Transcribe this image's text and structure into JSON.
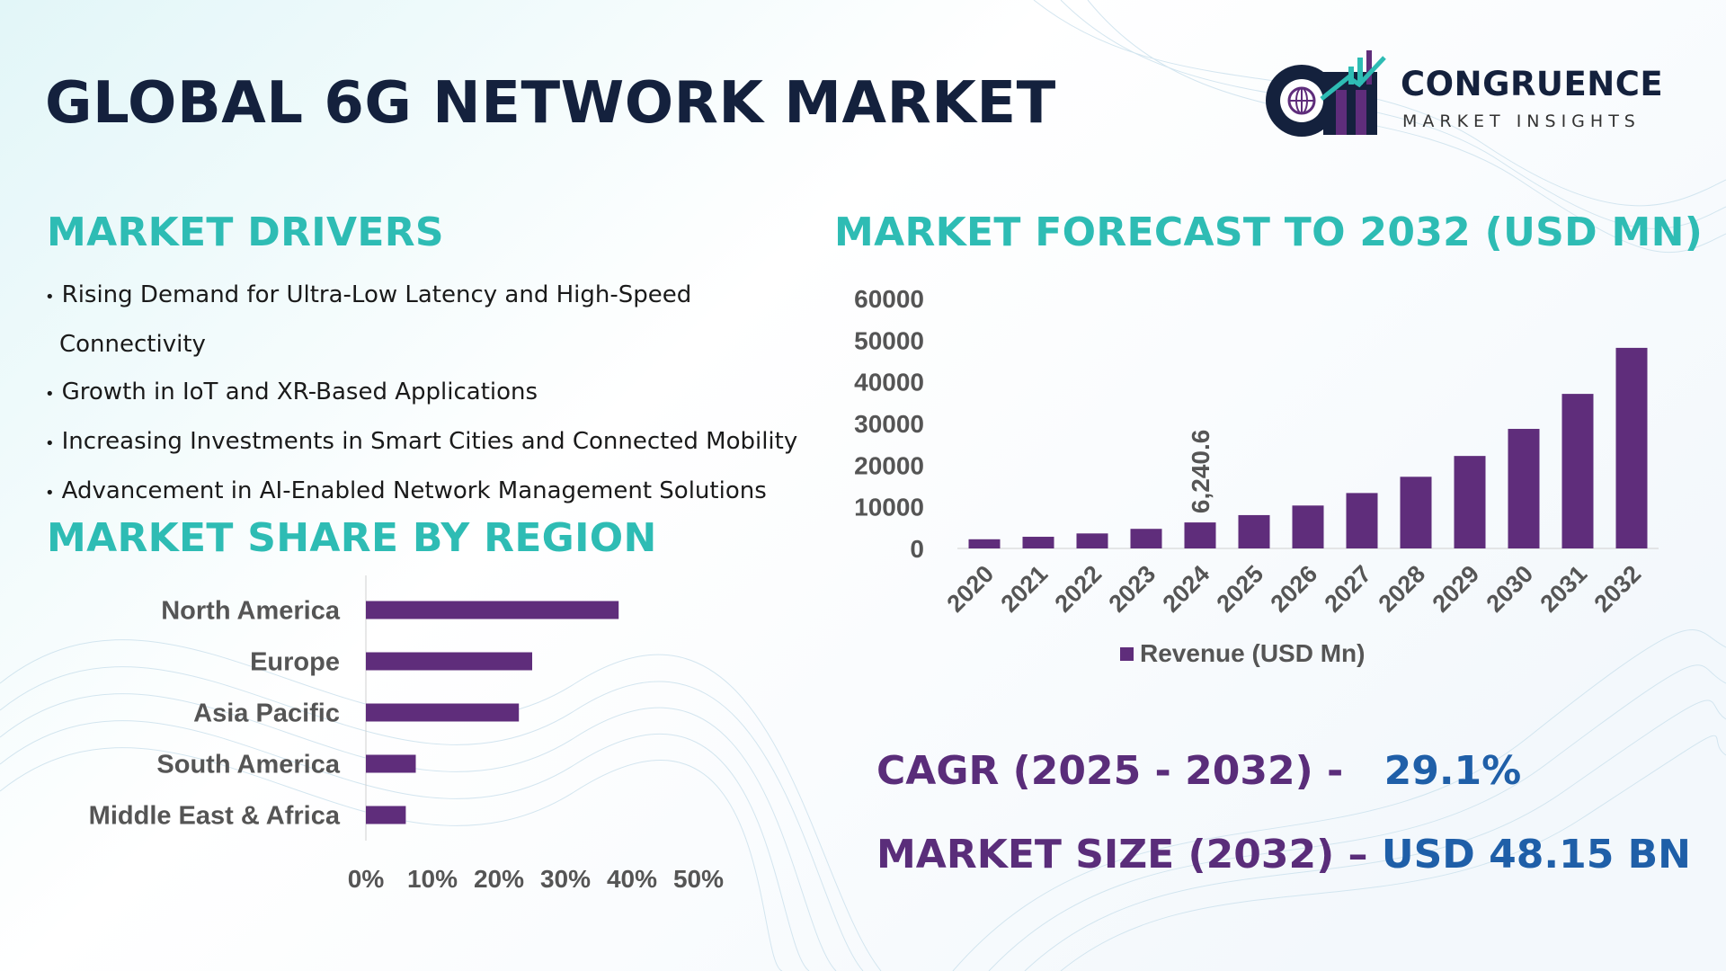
{
  "title": "GLOBAL 6G NETWORK MARKET",
  "logo": {
    "name": "CONGRUENCE",
    "tagline": "MARKET INSIGHTS",
    "monogram": "CM"
  },
  "drivers": {
    "heading": "MARKET DRIVERS",
    "items": [
      "Rising Demand for Ultra-Low Latency and High-Speed Connectivity",
      "Growth in IoT and XR-Based Applications",
      "Increasing Investments in Smart Cities and Connected Mobility",
      "Advancement in AI-Enabled Network Management Solutions"
    ]
  },
  "region": {
    "heading": "MARKET SHARE BY REGION"
  },
  "forecast": {
    "heading": "MARKET FORECAST TO 2032 (USD MN)"
  },
  "stats": {
    "cagr_label": "CAGR (2025 - 2032) -",
    "cagr_value": "29.1%",
    "size_label": "MARKET SIZE (2032) –",
    "size_value": "USD 48.15 BN"
  },
  "colors": {
    "bar": "#5f2d7b",
    "teal": "#2ebcb4",
    "title": "#14213d",
    "purple": "#5a2d7a",
    "blue": "#1f5fa8"
  },
  "chart_data": [
    {
      "type": "bar",
      "title": "MARKET FORECAST TO 2032 (USD MN)",
      "categories": [
        "2020",
        "2021",
        "2022",
        "2023",
        "2024",
        "2025",
        "2026",
        "2027",
        "2028",
        "2029",
        "2030",
        "2031",
        "2032"
      ],
      "series": [
        {
          "name": "Revenue (USD Mn)",
          "values": [
            2200,
            2800,
            3600,
            4700,
            6240.6,
            8000,
            10300,
            13300,
            17200,
            22200,
            28700,
            37100,
            48150
          ]
        }
      ],
      "data_labels": [
        {
          "category": "2024",
          "text": "6,240.6"
        }
      ],
      "yticks": [
        "0",
        "10000",
        "20000",
        "30000",
        "40000",
        "50000",
        "60000"
      ],
      "ylim": [
        0,
        60000
      ],
      "legend": "bottom"
    },
    {
      "type": "bar",
      "orientation": "horizontal",
      "title": "MARKET SHARE BY REGION",
      "categories": [
        "North America",
        "Europe",
        "Asia Pacific",
        "South America",
        "Middle East & Africa"
      ],
      "values": [
        38,
        25,
        23,
        7.5,
        6
      ],
      "xticks": [
        "0%",
        "10%",
        "20%",
        "30%",
        "40%",
        "50%"
      ],
      "xlim": [
        0,
        50
      ]
    }
  ]
}
